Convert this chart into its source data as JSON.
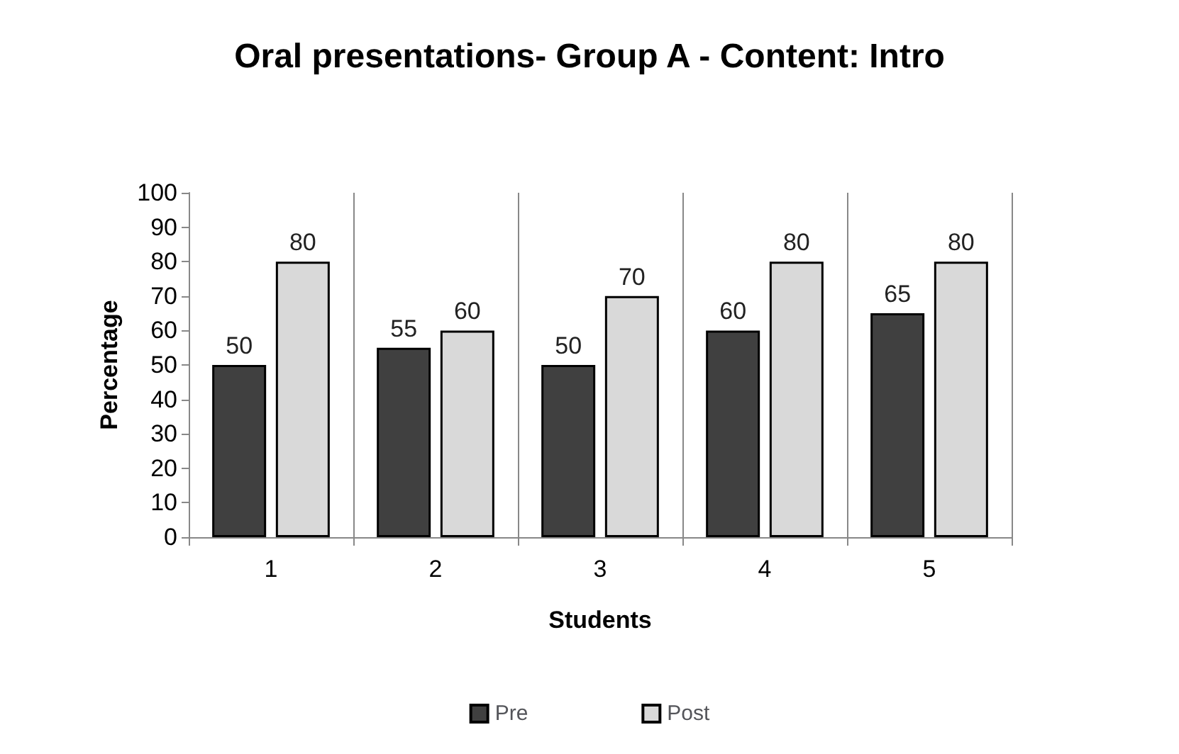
{
  "chart_data": {
    "type": "bar",
    "title": "Oral presentations- Group A - Content: Intro",
    "xlabel": "Students",
    "ylabel": "Percentage",
    "categories": [
      "1",
      "2",
      "3",
      "4",
      "5"
    ],
    "series": [
      {
        "name": "Pre",
        "color": "#404040",
        "values": [
          50,
          55,
          50,
          60,
          65
        ]
      },
      {
        "name": "Post",
        "color": "#d9d9d9",
        "values": [
          80,
          60,
          70,
          80,
          80
        ]
      }
    ],
    "ylim": [
      0,
      100
    ],
    "yticks": [
      0,
      10,
      20,
      30,
      40,
      50,
      60,
      70,
      80,
      90,
      100
    ],
    "grid": "x",
    "legend": "bottom",
    "data_labels": true
  }
}
